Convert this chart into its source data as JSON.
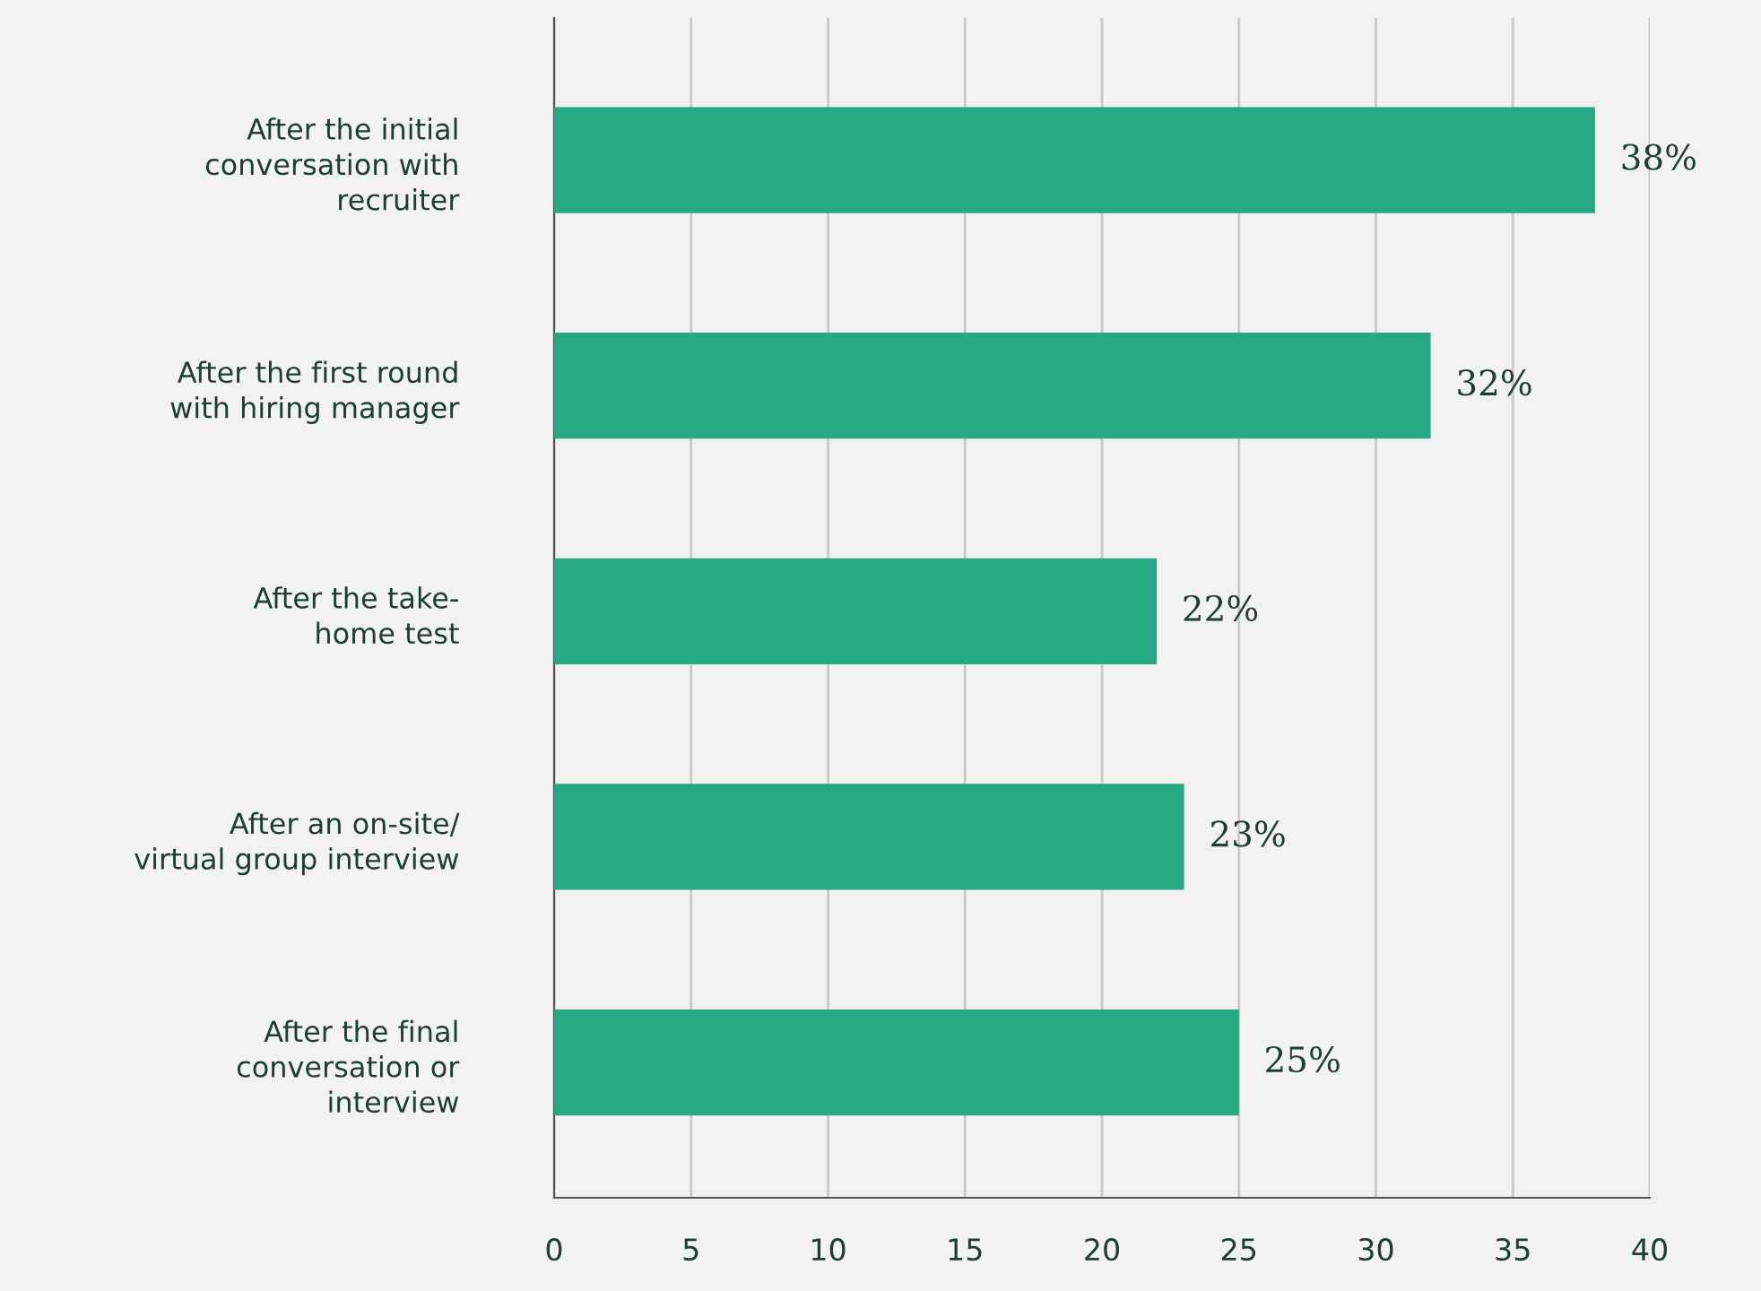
{
  "chart_data": {
    "type": "bar",
    "orientation": "horizontal",
    "categories": [
      "After the initial\nconversation with\nrecruiter",
      "After the first round\nwith hiring manager",
      "After the take-\nhome test",
      "After an on-site/\nvirtual group interview",
      "After the final\nconversation or\ninterview"
    ],
    "values": [
      38,
      32,
      22,
      23,
      25
    ],
    "value_labels": [
      "38%",
      "32%",
      "22%",
      "23%",
      "25%"
    ],
    "color": "#26a882",
    "xlim": [
      0,
      40
    ],
    "xticks": [
      0,
      5,
      10,
      15,
      20,
      25,
      30,
      35,
      40
    ],
    "grid": "x"
  }
}
